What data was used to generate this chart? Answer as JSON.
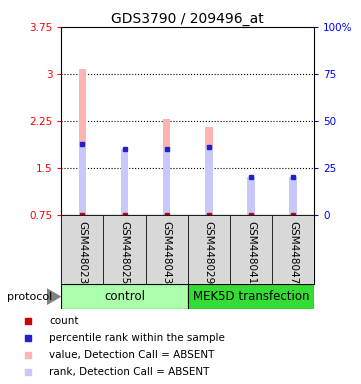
{
  "title": "GDS3790 / 209496_at",
  "samples": [
    "GSM448023",
    "GSM448025",
    "GSM448043",
    "GSM448029",
    "GSM448041",
    "GSM448047"
  ],
  "group_labels": [
    "control",
    "MEK5D transfection"
  ],
  "group_sizes": [
    3,
    3
  ],
  "values": [
    3.08,
    1.42,
    2.28,
    2.16,
    1.35,
    1.3
  ],
  "rank_pct": [
    37.5,
    35.0,
    35.0,
    36.0,
    20.0,
    20.0
  ],
  "ylim_left": [
    0.75,
    3.75
  ],
  "ylim_right": [
    0,
    100
  ],
  "yticks_left": [
    0.75,
    1.5,
    2.25,
    3.0,
    3.75
  ],
  "yticks_left_labels": [
    "0.75",
    "1.5",
    "2.25",
    "3",
    "3.75"
  ],
  "yticks_right": [
    0,
    25,
    50,
    75,
    100
  ],
  "yticks_right_labels": [
    "0",
    "25",
    "50",
    "75",
    "100%"
  ],
  "dotted_yticks": [
    1.5,
    2.25,
    3.0
  ],
  "bar_color_value": "#FFB3B3",
  "bar_color_rank": "#C8C8FF",
  "marker_color_value": "#CC0000",
  "marker_color_rank": "#2222CC",
  "bg_color": "#D8D8D8",
  "group_color_light": "#AAFFAA",
  "group_color_dark": "#33DD33",
  "title_fontsize": 10,
  "tick_fontsize": 7.5,
  "legend_fontsize": 7.5,
  "sample_fontsize": 7.5,
  "group_fontsize": 8.5
}
